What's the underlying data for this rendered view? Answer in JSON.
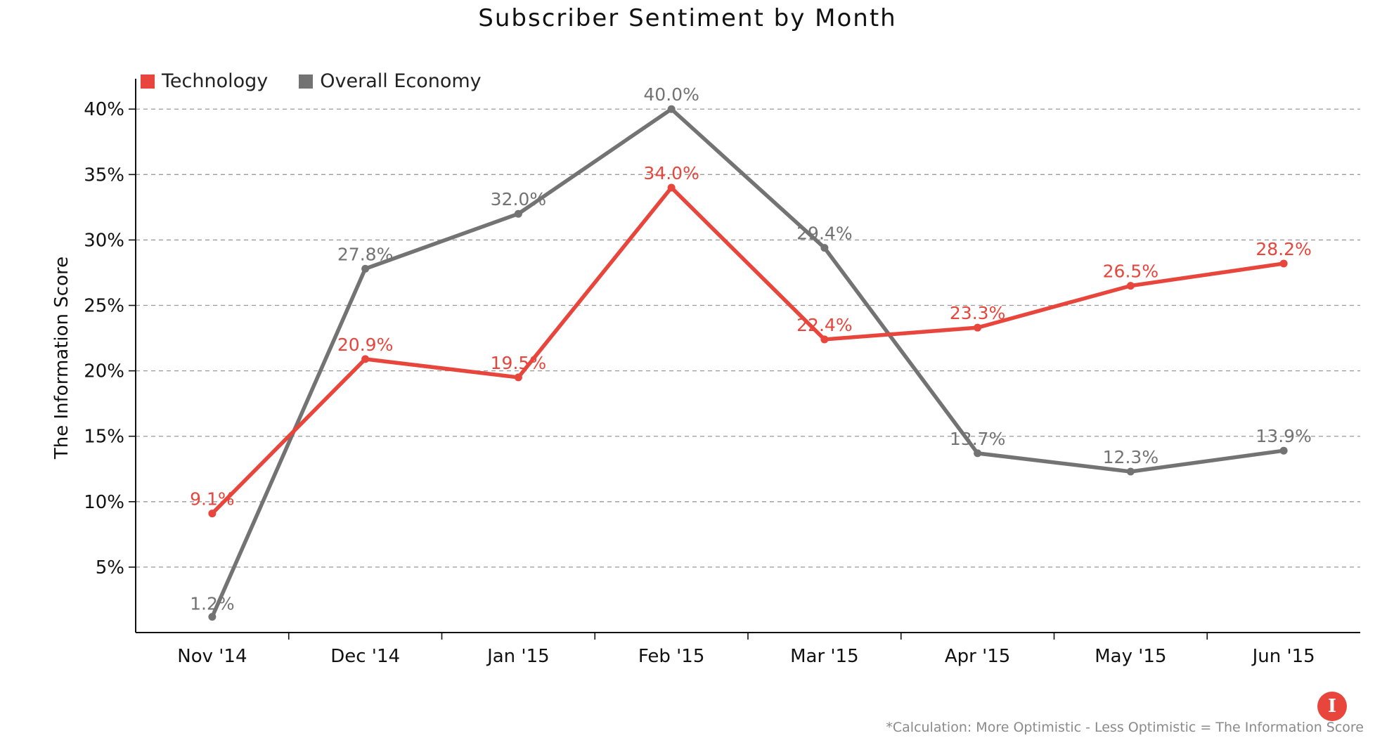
{
  "chart_data": {
    "type": "line",
    "title": "Subscriber Sentiment by Month",
    "xlabel": "",
    "ylabel": "The Information Score",
    "categories": [
      "Nov '14",
      "Dec '14",
      "Jan '15",
      "Feb '15",
      "Mar '15",
      "Apr '15",
      "May '15",
      "Jun '15"
    ],
    "ylim": [
      0,
      42
    ],
    "yticks": [
      5,
      10,
      15,
      20,
      25,
      30,
      35,
      40
    ],
    "ytick_labels": [
      "5%",
      "10%",
      "15%",
      "20%",
      "25%",
      "30%",
      "35%",
      "40%"
    ],
    "grid": true,
    "legend_position": "top-left",
    "series": [
      {
        "name": "Technology",
        "color": "#e8453c",
        "values": [
          9.1,
          20.9,
          19.5,
          34.0,
          22.4,
          23.3,
          26.5,
          28.2
        ],
        "labels": [
          "9.1%",
          "20.9%",
          "19.5%",
          "34.0%",
          "22.4%",
          "23.3%",
          "26.5%",
          "28.2%"
        ]
      },
      {
        "name": "Overall Economy",
        "color": "#737373",
        "values": [
          1.2,
          27.8,
          32.0,
          40.0,
          29.4,
          13.7,
          12.3,
          13.9
        ],
        "labels": [
          "1.2%",
          "27.8%",
          "32.0%",
          "40.0%",
          "29.4%",
          "13.7%",
          "12.3%",
          "13.9%"
        ]
      }
    ],
    "footnote": "*Calculation: More Optimistic - Less Optimistic = The Information Score"
  },
  "logo": {
    "letter": "I",
    "color": "#e8453c"
  }
}
